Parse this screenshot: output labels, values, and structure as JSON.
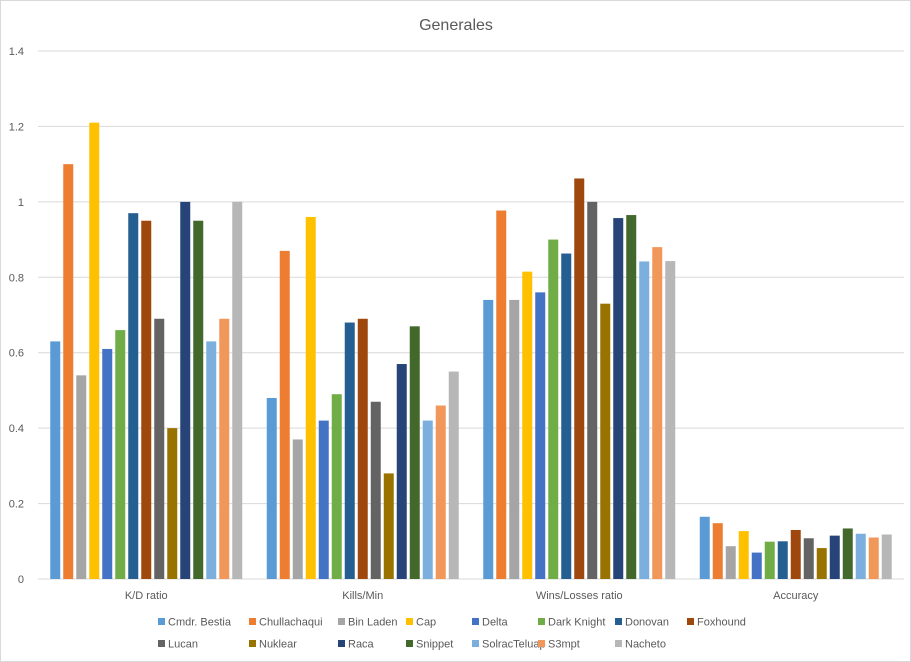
{
  "chart_data": {
    "type": "bar",
    "title": "Generales",
    "xlabel": "",
    "ylabel": "",
    "ylim": [
      0,
      1.4
    ],
    "yticks": [
      0,
      0.2,
      0.4,
      0.6,
      0.8,
      1,
      1.2,
      1.4
    ],
    "ytick_labels": [
      "0",
      "0.2",
      "0.4",
      "0.6",
      "0.8",
      "1",
      "1.2",
      "1.4"
    ],
    "grid": true,
    "legend_position": "bottom",
    "categories": [
      "K/D ratio",
      "Kills/Min",
      "Wins/Losses ratio",
      "Accuracy"
    ],
    "series": [
      {
        "name": "Cmdr. Bestia",
        "color": "#5B9BD5",
        "values": [
          0.63,
          0.48,
          0.74,
          0.165
        ]
      },
      {
        "name": "Chullachaqui",
        "color": "#ED7D31",
        "values": [
          1.1,
          0.87,
          0.977,
          0.148
        ]
      },
      {
        "name": "Bin Laden",
        "color": "#A5A5A5",
        "values": [
          0.54,
          0.37,
          0.74,
          0.087
        ]
      },
      {
        "name": "Cap",
        "color": "#FFC000",
        "values": [
          1.21,
          0.96,
          0.815,
          0.127
        ]
      },
      {
        "name": "Delta",
        "color": "#4472C4",
        "values": [
          0.61,
          0.42,
          0.76,
          0.07
        ]
      },
      {
        "name": "Dark Knight",
        "color": "#70AD47",
        "values": [
          0.66,
          0.49,
          0.9,
          0.099
        ]
      },
      {
        "name": "Donovan",
        "color": "#255E91",
        "values": [
          0.97,
          0.68,
          0.863,
          0.1
        ]
      },
      {
        "name": "Foxhound",
        "color": "#9E480E",
        "values": [
          0.95,
          0.69,
          1.062,
          0.13
        ]
      },
      {
        "name": "Lucan",
        "color": "#636363",
        "values": [
          0.69,
          0.47,
          1.0,
          0.108
        ]
      },
      {
        "name": "Nuklear",
        "color": "#997300",
        "values": [
          0.4,
          0.28,
          0.73,
          0.082
        ]
      },
      {
        "name": "Raca",
        "color": "#264478",
        "values": [
          1.0,
          0.57,
          0.957,
          0.115
        ]
      },
      {
        "name": "Snippet",
        "color": "#43682B",
        "values": [
          0.95,
          0.67,
          0.965,
          0.134
        ]
      },
      {
        "name": "SolracTeluap",
        "color": "#7CAFDD",
        "values": [
          0.63,
          0.42,
          0.842,
          0.12
        ]
      },
      {
        "name": "S3mpt",
        "color": "#F1975A",
        "values": [
          0.69,
          0.46,
          0.88,
          0.11
        ]
      },
      {
        "name": "Nacheto",
        "color": "#B7B7B7",
        "values": [
          1.0,
          0.55,
          0.843,
          0.118
        ]
      }
    ]
  }
}
